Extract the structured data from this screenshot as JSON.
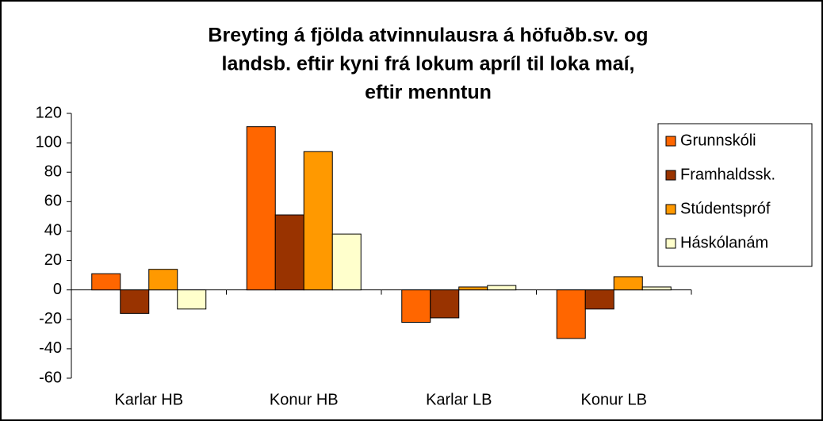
{
  "chart_data": {
    "type": "bar",
    "title": [
      "Breyting á fjölda atvinnulausra á höfuðb.sv. og",
      "landsb. eftir kyni frá lokum apríl til loka maí,",
      "eftir menntun"
    ],
    "categories": [
      "Karlar HB",
      "Konur HB",
      "Karlar LB",
      "Konur LB"
    ],
    "series": [
      {
        "name": "Grunnskóli",
        "color": "#ff6600",
        "values": [
          11,
          111,
          -22,
          -33
        ]
      },
      {
        "name": "Framhaldssk.",
        "color": "#993300",
        "values": [
          -16,
          51,
          -19,
          -13
        ]
      },
      {
        "name": "Stúdentspróf",
        "color": "#ff9900",
        "values": [
          14,
          94,
          2,
          9
        ]
      },
      {
        "name": "Háskólanám",
        "color": "#ffffcc",
        "values": [
          -13,
          38,
          3,
          2
        ]
      }
    ],
    "ylim": [
      -60,
      120
    ],
    "yticks": [
      -60,
      -40,
      -20,
      0,
      20,
      40,
      60,
      80,
      100,
      120
    ],
    "legend": "right"
  }
}
